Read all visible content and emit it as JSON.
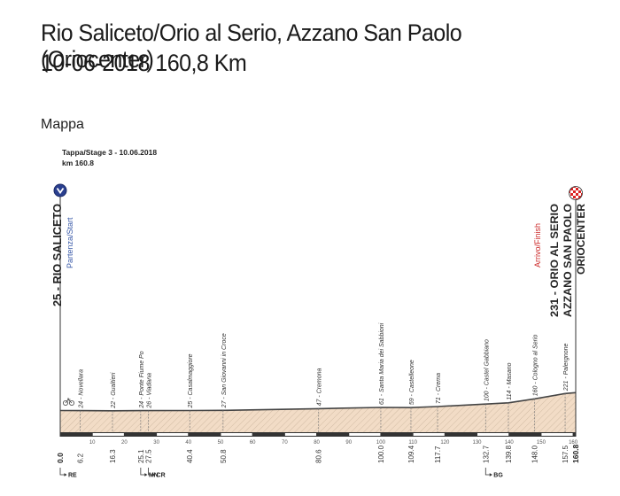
{
  "page": {
    "title": "Rio Saliceto/Orio al Serio, Azzano San Paolo (Oriocenter)",
    "subtitle": "10-06-2018 160,8 Km",
    "section": "Mappa"
  },
  "chart_data": {
    "type": "area",
    "header": {
      "stage": "Tappa/Stage 3 - 10.06.2018",
      "length": "km 160.8"
    },
    "start": {
      "label": "25 - RIO SALICETO",
      "sub": "Partenza/Start",
      "km": 0
    },
    "finish": {
      "line1": "231 - ORIO AL SERIO",
      "line2": "AZZANO SAN PAOLO",
      "line3": "ORIOCENTER",
      "sub": "Arrivo/Finish",
      "km": 160.8
    },
    "xlim": [
      0,
      160.8
    ],
    "altitude_profile": {
      "km": [
        0,
        6.2,
        16.3,
        25.1,
        40.4,
        50.8,
        80.6,
        100.0,
        109.4,
        117.7,
        132.7,
        139.8,
        148.0,
        157.5,
        160.8
      ],
      "alt": [
        25,
        24,
        22,
        24,
        25,
        27,
        47,
        61,
        59,
        71,
        100,
        114,
        160,
        221,
        231
      ]
    },
    "waypoints": [
      {
        "km": 6.2,
        "km_label": "6.2",
        "label": "24 - Novellara"
      },
      {
        "km": 16.3,
        "km_label": "16.3",
        "label": "22 - Gualtieri"
      },
      {
        "km": 25.1,
        "km_label": "25.1",
        "label": "24 - Ponte Fiume Po"
      },
      {
        "km": 27.5,
        "km_label": "27.5",
        "label": "26 - Viadana"
      },
      {
        "km": 40.4,
        "km_label": "40.4",
        "label": "25 - Casalmaggiore"
      },
      {
        "km": 50.8,
        "km_label": "50.8",
        "label": "27 - San Giovanni in Croce"
      },
      {
        "km": 80.6,
        "km_label": "80.6",
        "label": "47 - Cremona"
      },
      {
        "km": 100.0,
        "km_label": "100.0",
        "label": "61 - Santa Maria dei Sabbioni"
      },
      {
        "km": 109.4,
        "km_label": "109.4",
        "label": "59 - Castelleone"
      },
      {
        "km": 117.7,
        "km_label": "117.7",
        "label": "71 - Crema"
      },
      {
        "km": 132.7,
        "km_label": "132.7",
        "label": "100 - Castel Gabbiano"
      },
      {
        "km": 139.8,
        "km_label": "139.8",
        "label": "114 - Masano"
      },
      {
        "km": 148.0,
        "km_label": "148.0",
        "label": "160 - Cologno al Serio"
      },
      {
        "km": 157.5,
        "km_label": "157.5",
        "label": "221 - Palergnone"
      }
    ],
    "start_km_label": "0.0",
    "finish_km_label": "160.8",
    "ruler_ticks": [
      10,
      20,
      30,
      40,
      50,
      60,
      70,
      80,
      90,
      100,
      110,
      120,
      130,
      140,
      150,
      160
    ],
    "provinces": [
      {
        "km": 0,
        "label": "RE"
      },
      {
        "km": 25.1,
        "label": "MN"
      },
      {
        "km": 27.5,
        "label": "CR"
      },
      {
        "km": 132.7,
        "label": "BG"
      }
    ],
    "colors": {
      "start_badge": "#2a3f8f",
      "finish_sub": "#cc2a2a",
      "start_sub": "#3b5ba9",
      "fill": "#f2dcc6"
    }
  }
}
